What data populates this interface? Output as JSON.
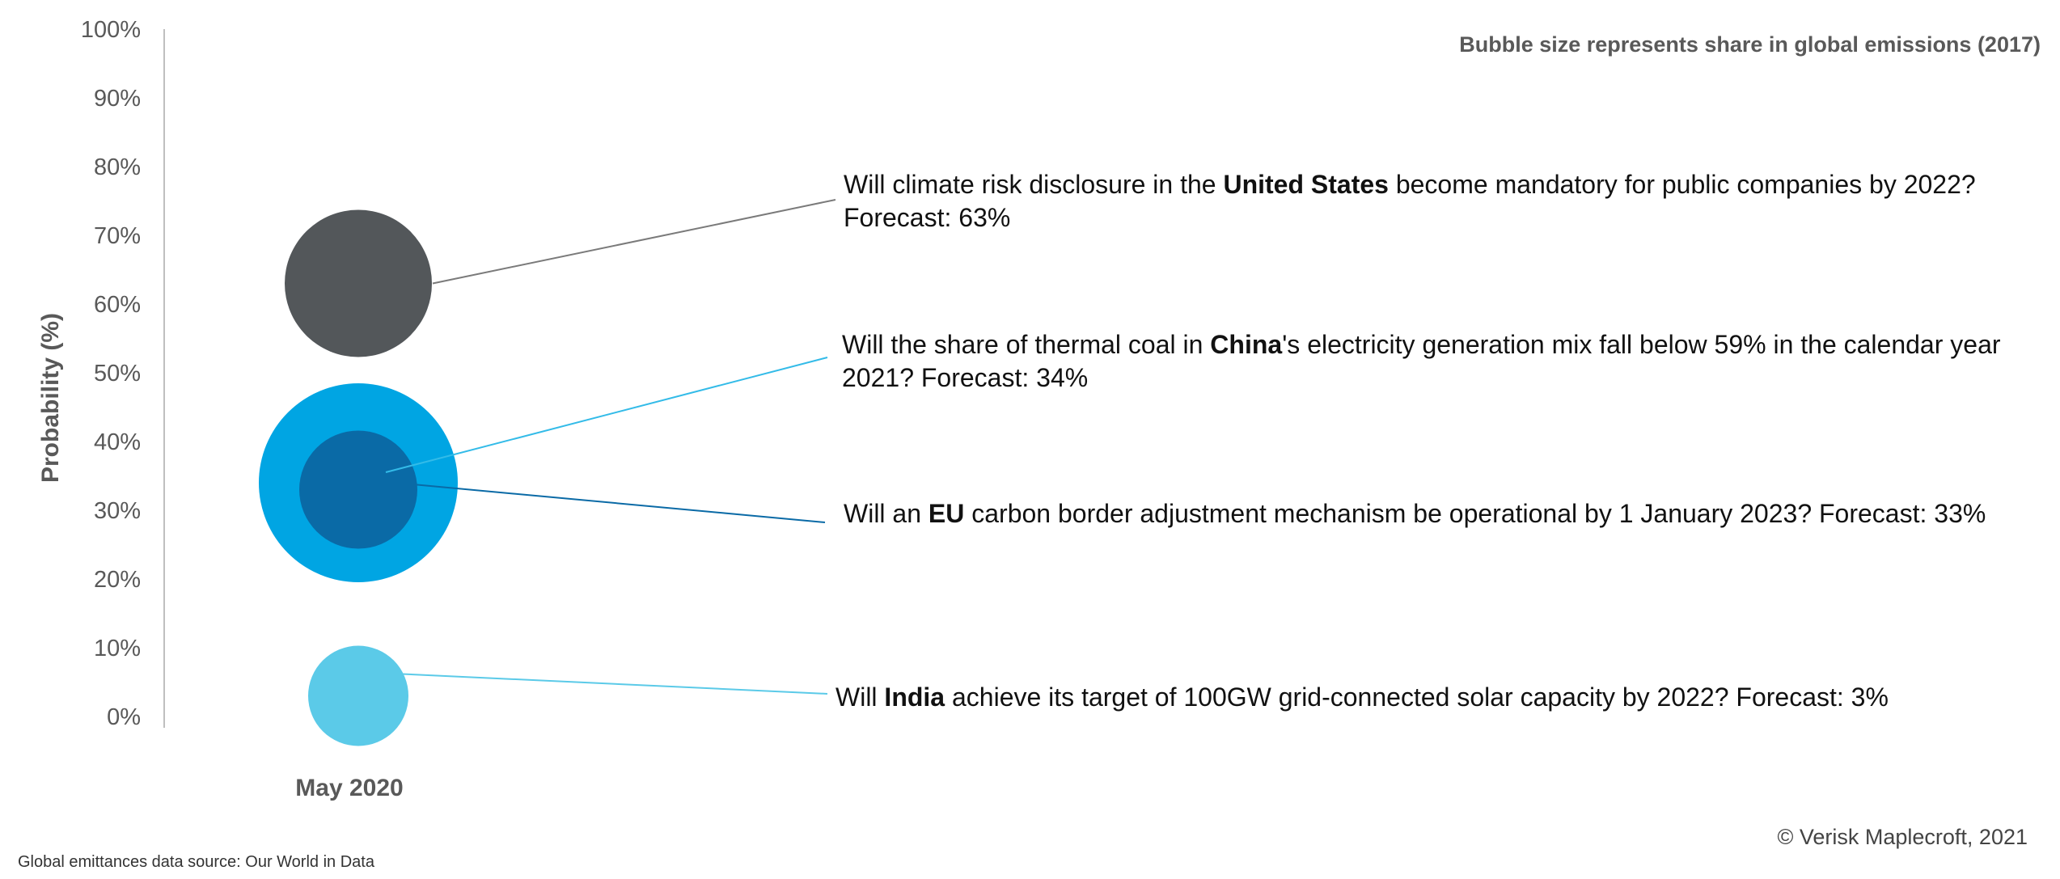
{
  "chart_data": {
    "type": "scatter",
    "subtype": "bubble",
    "y_axis": {
      "label": "Probability (%)",
      "range": [
        0,
        100
      ],
      "ticks": [
        "0%",
        "10%",
        "20%",
        "30%",
        "40%",
        "50%",
        "60%",
        "70%",
        "80%",
        "90%",
        "100%"
      ]
    },
    "x_categories": [
      "May 2020"
    ],
    "size_note": "Bubble size represents share in global emissions (2017)",
    "grid": false,
    "bubbles": [
      {
        "country": "United States",
        "forecast": 63,
        "color": "#53575a",
        "line_color": "#7a7a7a",
        "text_before": "Will climate risk disclosure in the ",
        "text_bold": "United States",
        "text_after": " become mandatory for public companies by 2022? Forecast: 63%"
      },
      {
        "country": "China",
        "forecast": 34,
        "color": "#00a5e3",
        "line_color": "#33bbe8",
        "text_before": "Will the share of thermal coal in ",
        "text_bold": "China",
        "text_after": "'s electricity generation mix fall below 59% in the calendar year 2021? Forecast: 34%"
      },
      {
        "country": "EU",
        "forecast": 33,
        "color": "#0a6aa6",
        "line_color": "#0a6aa6",
        "text_before": "Will an ",
        "text_bold": "EU",
        "text_after": " carbon border adjustment mechanism be operational by 1 January 2023? Forecast: 33%"
      },
      {
        "country": "India",
        "forecast": 3,
        "color": "#5bcae8",
        "line_color": "#5bcae8",
        "text_before": "Will ",
        "text_bold": "India",
        "text_after": " achieve its target of 100GW grid-connected solar capacity by 2022? Forecast: 3%"
      }
    ]
  },
  "footer": {
    "source": "Global emittances data source: Our World in Data",
    "copyright": "© Verisk Maplecroft, 2021"
  }
}
